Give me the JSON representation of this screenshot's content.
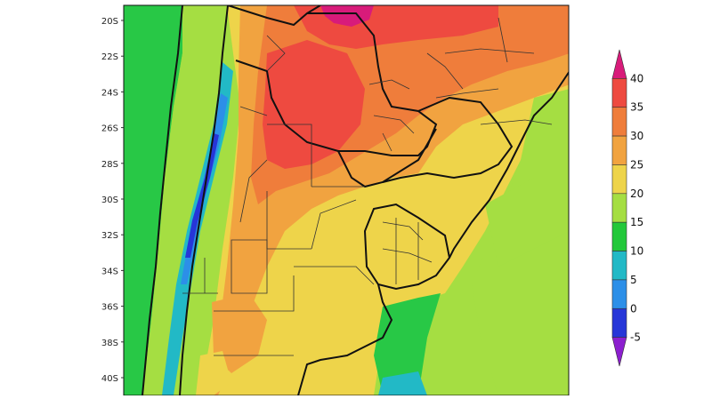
{
  "map": {
    "lat_labels": [
      "20S",
      "22S",
      "24S",
      "26S",
      "28S",
      "30S",
      "32S",
      "34S",
      "36S",
      "38S",
      "40S"
    ],
    "colorbar": {
      "ticks": [
        "40",
        "35",
        "30",
        "25",
        "20",
        "15",
        "10",
        "5",
        "0",
        "-5"
      ],
      "colors": [
        "#d81b7a",
        "#ee4a40",
        "#ef7d3b",
        "#f1a340",
        "#eed44a",
        "#a5de42",
        "#22c83a",
        "#22b9c6",
        "#2c8fe8",
        "#2636d8",
        "#8c1fcf"
      ]
    }
  }
}
